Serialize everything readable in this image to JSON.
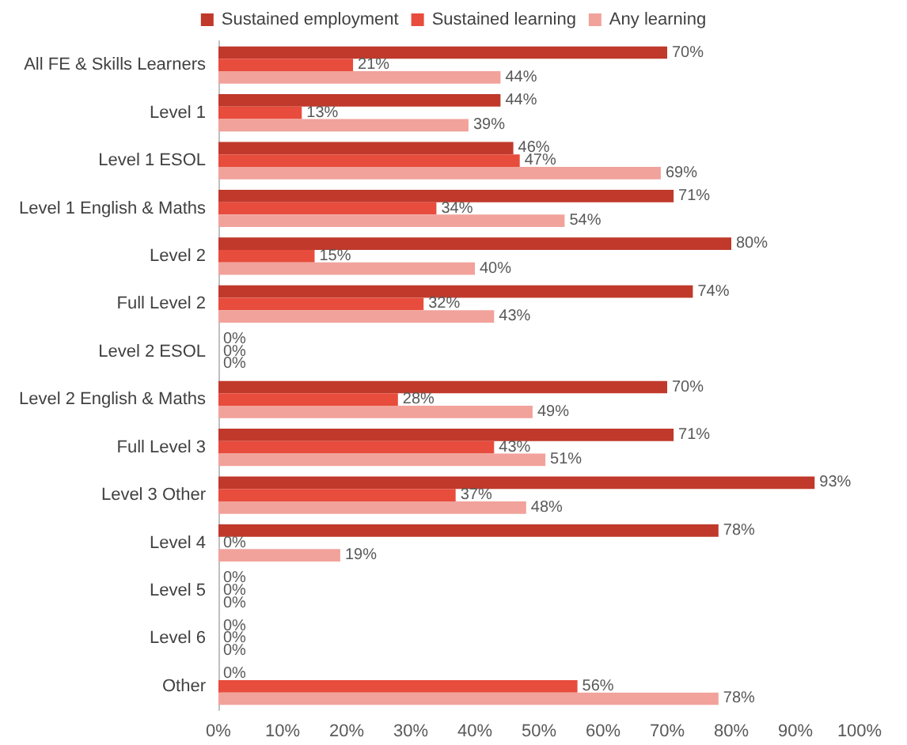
{
  "chart_data": {
    "type": "bar",
    "orientation": "horizontal",
    "categories": [
      "All FE & Skills Learners",
      "Level 1",
      "Level 1 ESOL",
      "Level 1 English & Maths",
      "Level 2",
      "Full Level 2",
      "Level 2 ESOL",
      "Level 2 English & Maths",
      "Full Level 3",
      "Level 3 Other",
      "Level 4",
      "Level 5",
      "Level 6",
      "Other"
    ],
    "series": [
      {
        "name": "Sustained employment",
        "color": "#c0392b",
        "values": [
          70,
          44,
          46,
          71,
          80,
          74,
          0,
          70,
          71,
          93,
          78,
          0,
          0,
          0
        ],
        "value_labels": [
          "70%",
          "44%",
          "46%",
          "71%",
          "80%",
          "74%",
          "0%",
          "70%",
          "71%",
          "93%",
          "78%",
          "0%",
          "0%",
          "0%"
        ]
      },
      {
        "name": "Sustained learning",
        "color": "#e74c3c",
        "values": [
          21,
          13,
          47,
          34,
          15,
          32,
          0,
          28,
          43,
          37,
          0,
          0,
          0,
          56
        ],
        "value_labels": [
          "21%",
          "13%",
          "47%",
          "34%",
          "15%",
          "32%",
          "0%",
          "28%",
          "43%",
          "37%",
          "0%",
          "0%",
          "0%",
          "56%"
        ]
      },
      {
        "name": "Any learning",
        "color": "#f1a29b",
        "values": [
          44,
          39,
          69,
          54,
          40,
          43,
          0,
          49,
          51,
          48,
          19,
          0,
          0,
          78
        ],
        "value_labels": [
          "44%",
          "39%",
          "69%",
          "54%",
          "40%",
          "43%",
          "0%",
          "49%",
          "51%",
          "48%",
          "19%",
          "0%",
          "0%",
          "78%"
        ]
      }
    ],
    "xlim": [
      0,
      100
    ],
    "xticks": [
      {
        "value": 0,
        "label": "0%"
      },
      {
        "value": 10,
        "label": "10%"
      },
      {
        "value": 20,
        "label": "20%"
      },
      {
        "value": 30,
        "label": "30%"
      },
      {
        "value": 40,
        "label": "40%"
      },
      {
        "value": 50,
        "label": "50%"
      },
      {
        "value": 60,
        "label": "60%"
      },
      {
        "value": 70,
        "label": "70%"
      },
      {
        "value": 80,
        "label": "80%"
      },
      {
        "value": 90,
        "label": "90%"
      },
      {
        "value": 100,
        "label": "100%"
      }
    ],
    "legend": "top",
    "grid": false
  }
}
